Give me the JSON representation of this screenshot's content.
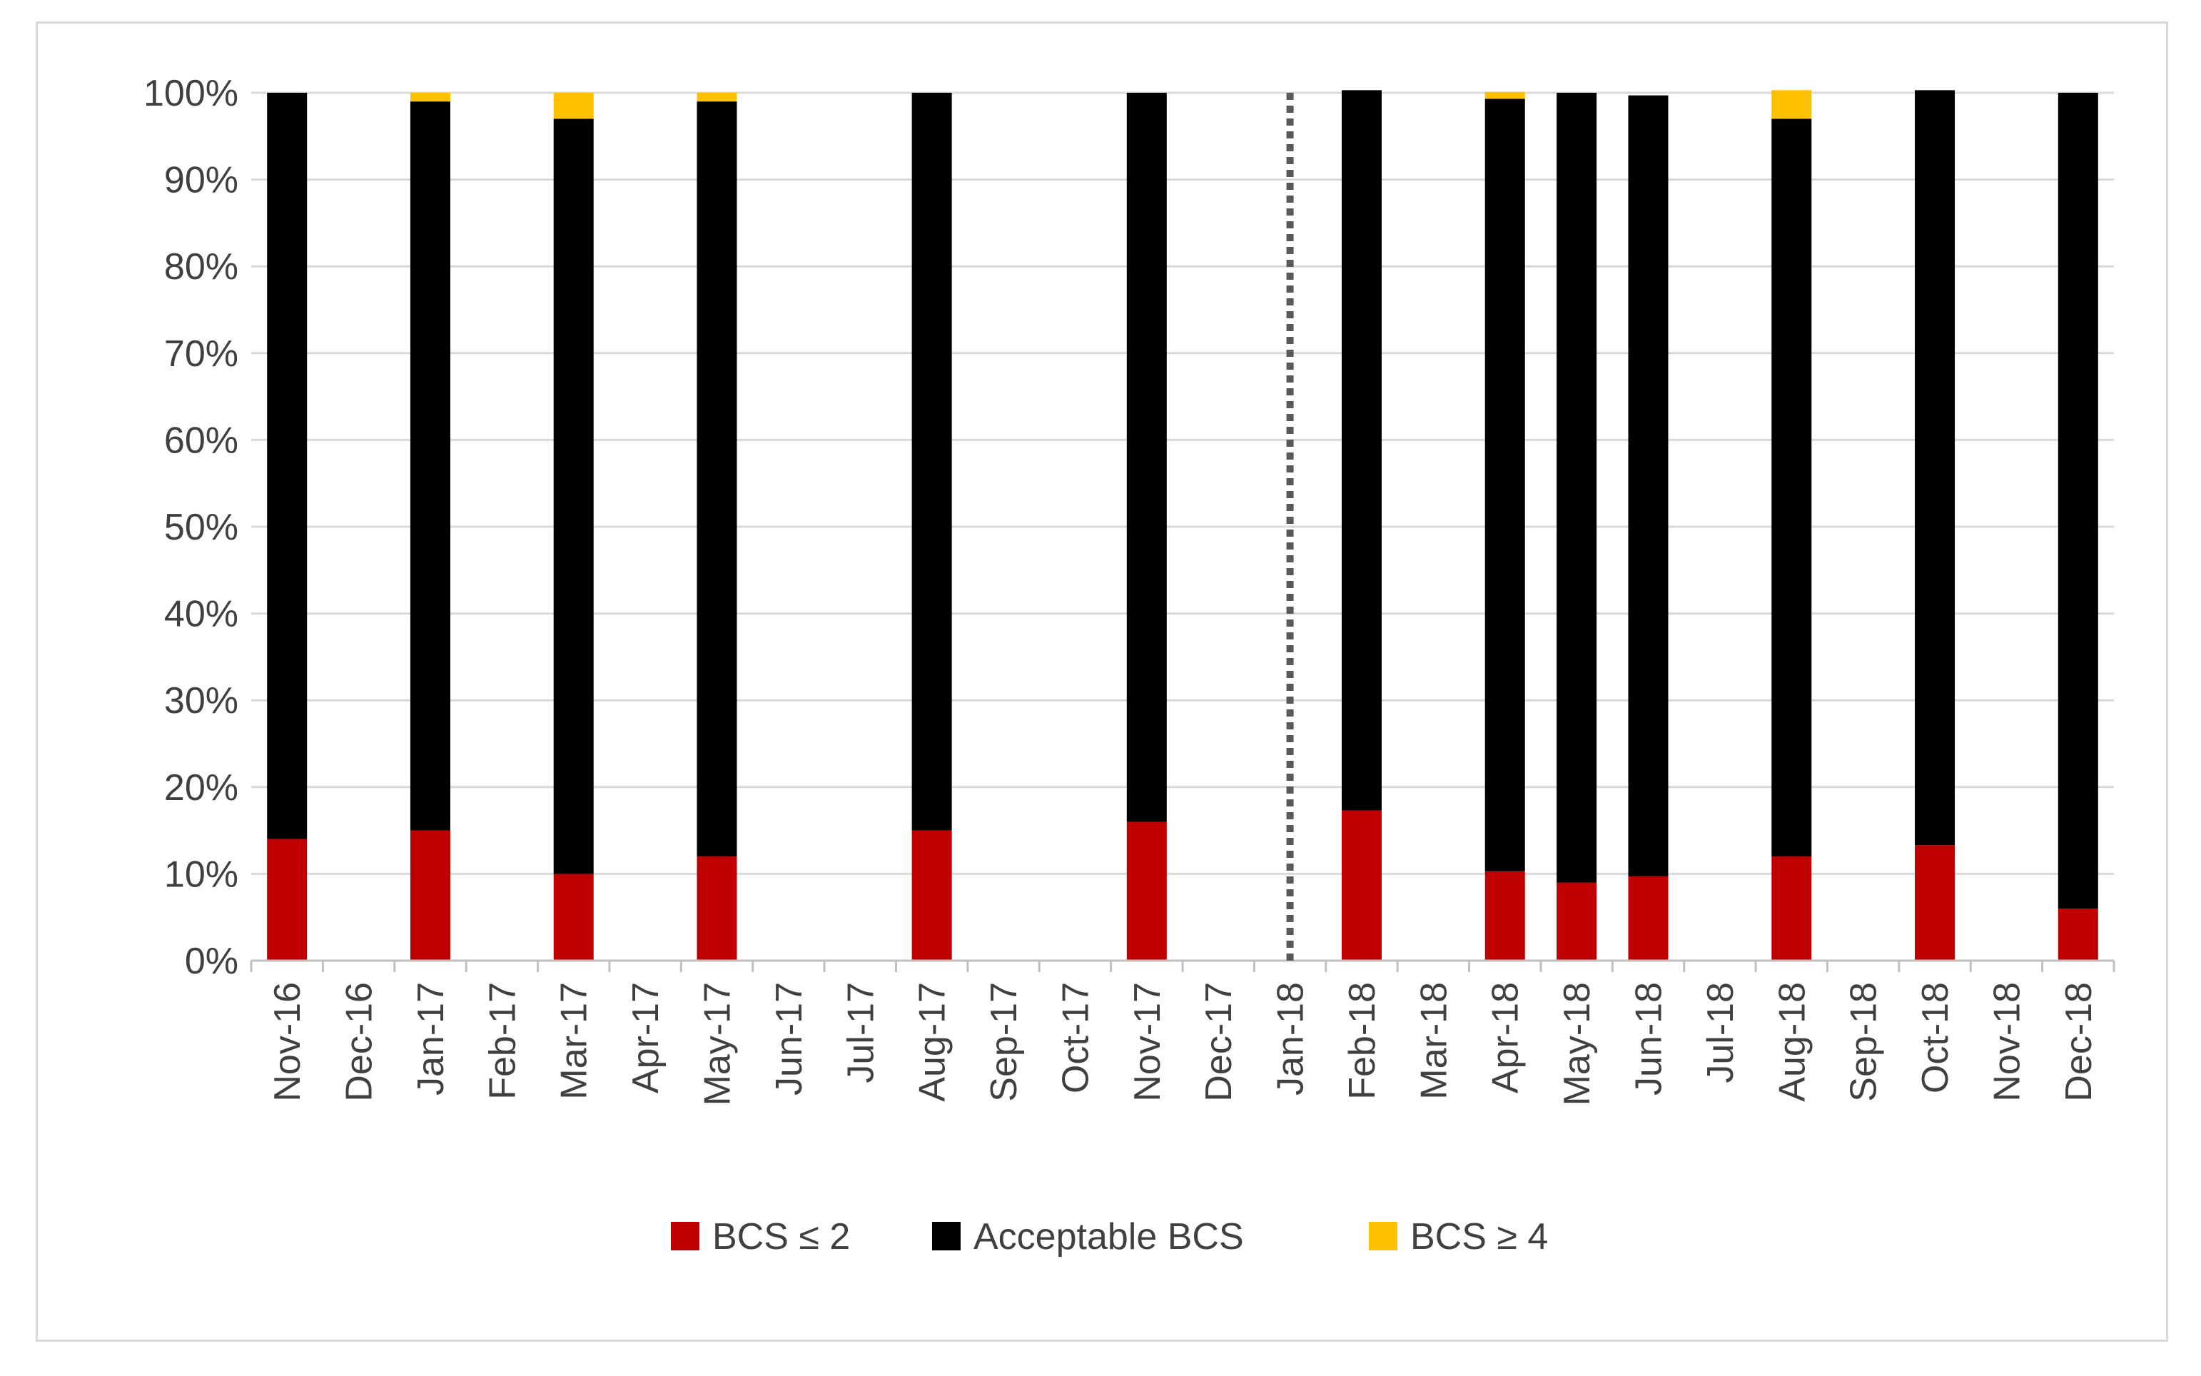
{
  "chart_data": {
    "type": "bar",
    "stacked": true,
    "categories": [
      "Nov-16",
      "Dec-16",
      "Jan-17",
      "Feb-17",
      "Mar-17",
      "Apr-17",
      "May-17",
      "Jun-17",
      "Jul-17",
      "Aug-17",
      "Sep-17",
      "Oct-17",
      "Nov-17",
      "Dec-17",
      "Jan-18",
      "Feb-18",
      "Mar-18",
      "Apr-18",
      "May-18",
      "Jun-18",
      "Jul-18",
      "Aug-18",
      "Sep-18",
      "Oct-18",
      "Nov-18",
      "Dec-18"
    ],
    "series": [
      {
        "name": "BCS ≤ 2",
        "color": "#c00000",
        "values": [
          14,
          null,
          15,
          null,
          10,
          null,
          12,
          null,
          null,
          15,
          null,
          null,
          16,
          null,
          null,
          17.3,
          null,
          10.3,
          9,
          9.7,
          null,
          12,
          null,
          13.3,
          null,
          6
        ]
      },
      {
        "name": "Acceptable BCS",
        "color": "#000000",
        "values": [
          86,
          null,
          84,
          null,
          87,
          null,
          87,
          null,
          null,
          85,
          null,
          null,
          84,
          null,
          null,
          83,
          null,
          89,
          91,
          90,
          null,
          85,
          null,
          87,
          null,
          94
        ]
      },
      {
        "name": "BCS ≥ 4",
        "color": "#ffc000",
        "values": [
          0,
          null,
          1,
          null,
          3,
          null,
          1,
          null,
          null,
          0,
          null,
          null,
          0,
          null,
          null,
          0,
          null,
          0.8,
          0,
          0,
          null,
          3.3,
          null,
          0,
          null,
          0
        ]
      }
    ],
    "yaxis": {
      "min": 0,
      "max": 100,
      "step": 10,
      "format": "percent",
      "tick_labels": [
        "0%",
        "10%",
        "20%",
        "30%",
        "40%",
        "50%",
        "60%",
        "70%",
        "80%",
        "90%",
        "100%"
      ]
    },
    "grid": true,
    "reference_line": {
      "category": "Jan-18",
      "style": "dotted",
      "color": "#595959"
    },
    "legend": {
      "position": "bottom",
      "entries": [
        "BCS ≤ 2",
        "Acceptable BCS",
        "BCS ≥ 4"
      ]
    },
    "title": "",
    "xlabel": "",
    "ylabel": ""
  }
}
